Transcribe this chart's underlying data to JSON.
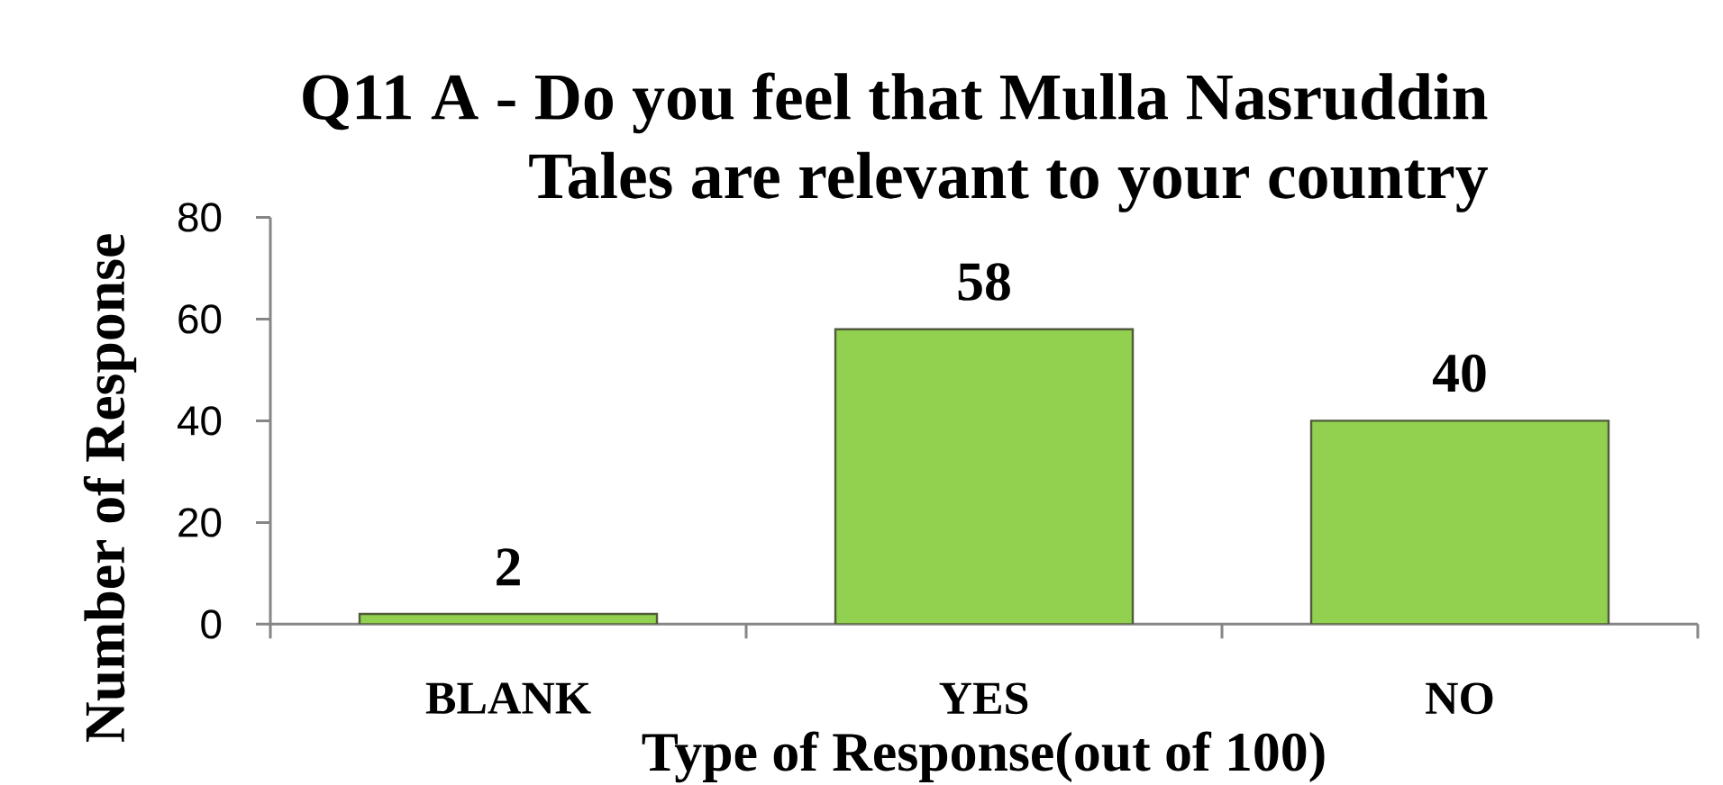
{
  "chart_data": {
    "type": "bar",
    "title": "Q11 A - Do you feel that Mulla Nasruddin Tales are relevant to your country",
    "xlabel": "Type of Response(out of 100)",
    "ylabel": "Number of Response",
    "categories": [
      "BLANK",
      "YES",
      "NO"
    ],
    "values": [
      2,
      58,
      40
    ],
    "color": "#92d050",
    "ylim": [
      0,
      80
    ],
    "yticks": [
      0,
      20,
      40,
      60,
      80
    ],
    "data_labels": true
  }
}
